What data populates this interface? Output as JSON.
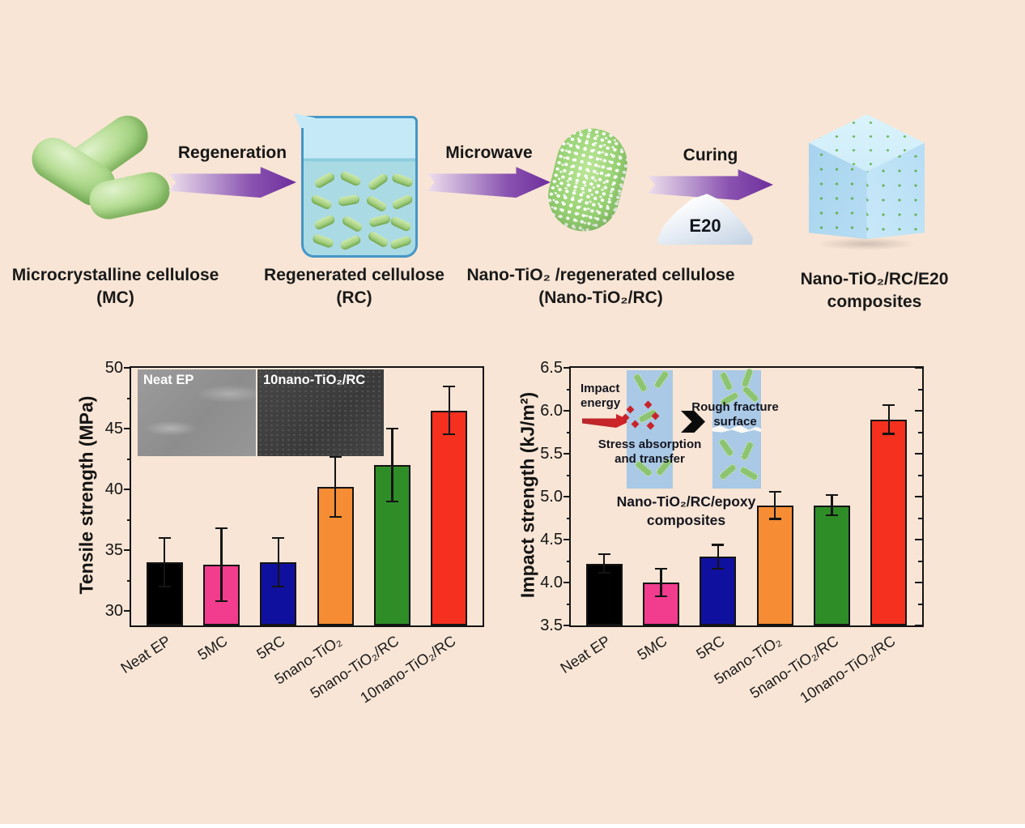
{
  "colors": {
    "background": "#f8e5d5",
    "arrow_purple": "#6d2f9c",
    "axis": "#141414"
  },
  "process": {
    "arrows": [
      {
        "label": "Regeneration"
      },
      {
        "label": "Microwave"
      },
      {
        "label": "Curing"
      }
    ],
    "e20_label": "E20",
    "captions": [
      {
        "line1": "Microcrystalline cellulose",
        "line2": "(MC)"
      },
      {
        "line1": "Regenerated cellulose",
        "line2": "(RC)"
      },
      {
        "line1": "Nano-TiO₂ /regenerated cellulose",
        "line2": "(Nano-TiO₂/RC)"
      },
      {
        "line1": "Nano-TiO₂/RC/E20",
        "line2": "composites"
      }
    ]
  },
  "chart_data": [
    {
      "type": "bar",
      "title": "",
      "ylabel": "Tensile strength (MPa)",
      "xlabel": "",
      "categories": [
        "Neat EP",
        "5MC",
        "5RC",
        "5nano-TiO₂",
        "5nano-TiO₂/RC",
        "10nano-TiO₂/RC"
      ],
      "values": [
        34.0,
        33.8,
        34.0,
        40.2,
        42.0,
        46.5
      ],
      "errors": [
        2.0,
        3.0,
        2.0,
        2.5,
        3.0,
        2.0
      ],
      "bar_colors": [
        "#000000",
        "#f23c8e",
        "#10109e",
        "#f68d35",
        "#2f8d28",
        "#f5301e"
      ],
      "ylim": [
        28.8,
        50
      ],
      "yticks": [
        "30",
        "35",
        "40",
        "45",
        "50"
      ],
      "minor_ticks": [
        32.5,
        37.5,
        42.5,
        47.5
      ],
      "grid": false,
      "legend": "none",
      "insets": [
        {
          "label": "Neat EP"
        },
        {
          "label": "10nano-TiO₂/RC"
        }
      ]
    },
    {
      "type": "bar",
      "title": "",
      "ylabel": "Impact strength (kJ/m²)",
      "xlabel": "",
      "categories": [
        "Neat EP",
        "5MC",
        "5RC",
        "5nano-TiO₂",
        "5nano-TiO₂/RC",
        "10nano-TiO₂/RC"
      ],
      "values": [
        4.22,
        4.0,
        4.3,
        4.9,
        4.9,
        5.9
      ],
      "errors": [
        0.11,
        0.16,
        0.14,
        0.16,
        0.12,
        0.17
      ],
      "bar_colors": [
        "#000000",
        "#f23c8e",
        "#10109e",
        "#f68d35",
        "#2f8d28",
        "#f5301e"
      ],
      "ylim": [
        3.5,
        6.5
      ],
      "yticks": [
        "3.5",
        "4.0",
        "4.5",
        "5.0",
        "5.5",
        "6.0",
        "6.5"
      ],
      "minor_ticks": [
        3.75,
        4.25,
        4.75,
        5.25,
        5.75,
        6.25
      ],
      "grid": false,
      "legend": "none",
      "annotations": {
        "impact_line1": "Impact",
        "impact_line2": "energy",
        "stress_line1": "Stress absorption",
        "stress_line2": "and transfer",
        "rough_line1": "Rough fracture",
        "rough_line2": "surface",
        "comp_line1": "Nano-TiO₂/RC/epoxy",
        "comp_line2": "composites"
      }
    }
  ]
}
